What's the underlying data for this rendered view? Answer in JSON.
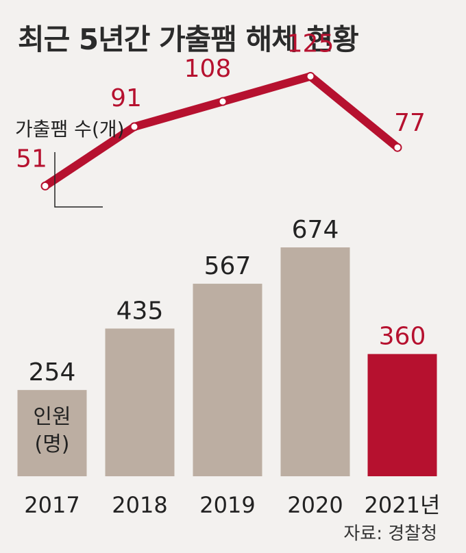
{
  "title": "최근 5년간 가출팸 해체 현황",
  "source": "자료: 경찰청",
  "colors": {
    "accent": "#b6112f",
    "bar": "#bcaea2",
    "bar_highlight": "#b6112f",
    "text": "#222222",
    "background": "#f3f1ef"
  },
  "chart_data": {
    "type": "bar",
    "categories": [
      "2017",
      "2018",
      "2019",
      "2020",
      "2021년"
    ],
    "series": [
      {
        "name": "인원(명)",
        "type": "bar",
        "values": [
          254,
          435,
          567,
          674,
          360
        ]
      },
      {
        "name": "가출팸 수(개)",
        "type": "line",
        "values": [
          51,
          91,
          108,
          125,
          77
        ]
      }
    ],
    "highlight_index": 4,
    "bar_label": [
      "인원",
      "(명)"
    ],
    "line_label": "가출팸 수(개)",
    "grid": false
  }
}
